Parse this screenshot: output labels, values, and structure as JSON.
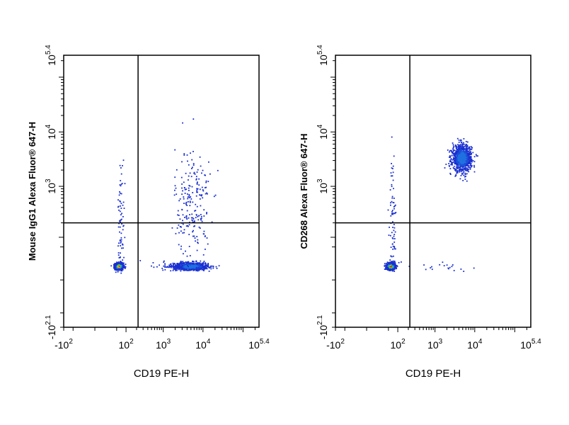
{
  "chart_data": [
    {
      "type": "scatter",
      "plot_style": "flow-cytometry density dot plot with quadrant gates",
      "xlabel": "CD19 PE-H",
      "ylabel": "Mouse IgG1 Alexa Fluor® 647-H",
      "x_ticks": [
        {
          "base": "-10",
          "exp": "2",
          "value": -100
        },
        {
          "base": "10",
          "exp": "2",
          "value": 100
        },
        {
          "base": "10",
          "exp": "3",
          "value": 1000
        },
        {
          "base": "10",
          "exp": "4",
          "value": 10000
        },
        {
          "base": "10",
          "exp": "5.4",
          "value": 251189
        }
      ],
      "y_ticks": [
        {
          "base": "-10",
          "exp": "2.1",
          "value": -126
        },
        {
          "base": "10",
          "exp": "3",
          "value": 1000
        },
        {
          "base": "10",
          "exp": "4",
          "value": 10000
        },
        {
          "base": "10",
          "exp": "5.4",
          "value": 251189
        }
      ],
      "gate": {
        "x": 220,
        "y": 200
      },
      "populations": [
        {
          "x": 60,
          "y": 15,
          "sx": 0.07,
          "sy": 0.07,
          "n": 900,
          "high_density": true
        },
        {
          "x": 5000,
          "y": 15,
          "sx": 0.22,
          "sy": 0.08,
          "n": 850,
          "high_density": false
        },
        {
          "x": 5500,
          "y": 450,
          "sx": 0.22,
          "sy": 0.55,
          "n": 220,
          "high_density": false
        },
        {
          "x": 70,
          "y": 260,
          "sx": 0.05,
          "sy": 0.55,
          "n": 70,
          "high_density": false
        },
        {
          "x": 1500,
          "y": 15,
          "sx": 0.6,
          "sy": 0.12,
          "n": 35,
          "high_density": false
        }
      ]
    },
    {
      "type": "scatter",
      "plot_style": "flow-cytometry density dot plot with quadrant gates",
      "xlabel": "CD19 PE-H",
      "ylabel": "CD268 Alexa Fluor® 647-H",
      "x_ticks": [
        {
          "base": "-10",
          "exp": "2",
          "value": -100
        },
        {
          "base": "10",
          "exp": "2",
          "value": 100
        },
        {
          "base": "10",
          "exp": "3",
          "value": 1000
        },
        {
          "base": "10",
          "exp": "4",
          "value": 10000
        },
        {
          "base": "10",
          "exp": "5.4",
          "value": 251189
        }
      ],
      "y_ticks": [
        {
          "base": "-10",
          "exp": "2.1",
          "value": -126
        },
        {
          "base": "10",
          "exp": "3",
          "value": 1000
        },
        {
          "base": "10",
          "exp": "4",
          "value": 10000
        },
        {
          "base": "10",
          "exp": "5.4",
          "value": 251189
        }
      ],
      "gate": {
        "x": 220,
        "y": 200
      },
      "populations": [
        {
          "x": 60,
          "y": 15,
          "sx": 0.07,
          "sy": 0.07,
          "n": 900,
          "high_density": true
        },
        {
          "x": 4800,
          "y": 3300,
          "sx": 0.12,
          "sy": 0.12,
          "n": 1000,
          "high_density": false
        },
        {
          "x": 70,
          "y": 260,
          "sx": 0.05,
          "sy": 0.55,
          "n": 70,
          "high_density": false
        },
        {
          "x": 1500,
          "y": 15,
          "sx": 0.6,
          "sy": 0.12,
          "n": 20,
          "high_density": false
        }
      ]
    }
  ]
}
